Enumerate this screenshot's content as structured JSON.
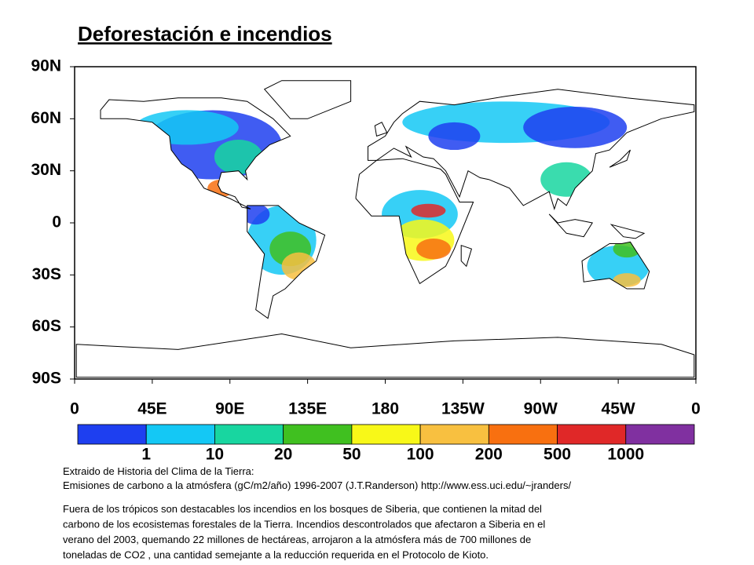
{
  "title": "Deforestación e incendios",
  "map": {
    "y_labels": [
      "90N",
      "60N",
      "30N",
      "0",
      "30S",
      "60S",
      "90S"
    ],
    "x_labels": [
      "0",
      "45E",
      "90E",
      "135E",
      "180",
      "135W",
      "90W",
      "45W",
      "0"
    ]
  },
  "colorbar": {
    "colors": [
      "#1e3ff0",
      "#14c8f5",
      "#18d6a0",
      "#40c020",
      "#f8f818",
      "#f8c040",
      "#f87010",
      "#e02828",
      "#8030a0"
    ],
    "labels": [
      "1",
      "10",
      "20",
      "50",
      "100",
      "200",
      "500",
      "1000"
    ]
  },
  "caption": {
    "source_lines": [
      "Extraido de Historia del Clima de la Tierra:",
      "Emisiones de carbono a la atmósfera (gC/m2/año) 1996-2007 (J.T.Randerson) http://www.ess.uci.edu/~jranders/"
    ],
    "body_lines": [
      "Fuera de los trópicos son destacables  los incendios en los bosques de Siberia, que contienen la mitad del",
      "carbono de los ecosistemas forestales de la Tierra.  Incendios descontrolados que afectaron a Siberia en el",
      "verano del 2003, quemando 22 millones de hectáreas, arrojaron a la atmósfera más de 700 millones de",
      "toneladas de CO2 , una cantidad semejante a la reducción requerida en el Protocolo de Kioto."
    ]
  }
}
